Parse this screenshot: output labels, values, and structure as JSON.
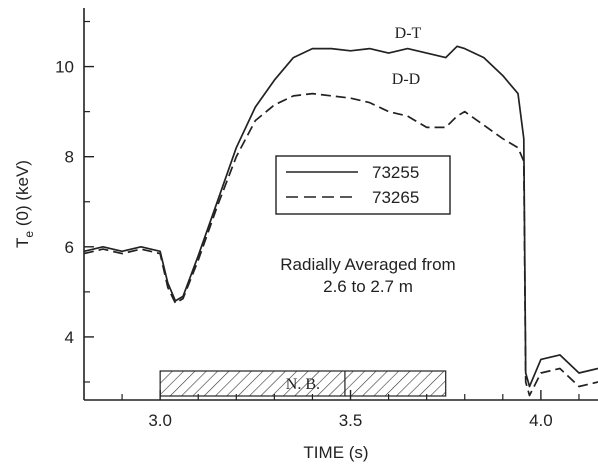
{
  "chart_data": {
    "type": "line",
    "xlabel": "TIME (s)",
    "ylabel_main": "T",
    "ylabel_sub": "e",
    "ylabel_rest": " (0) (keV)",
    "xlim": [
      2.8,
      4.15
    ],
    "ylim": [
      2.6,
      11.3
    ],
    "x_ticks": [
      3.0,
      3.5,
      4.0
    ],
    "x_tick_labels": [
      "3.0",
      "3.5",
      "4.0"
    ],
    "y_ticks": [
      4,
      6,
      8,
      10
    ],
    "y_tick_labels": [
      "4",
      "6",
      "8",
      "10"
    ],
    "grid": false,
    "legend_position": "center",
    "series": [
      {
        "name": "73255",
        "style": "solid",
        "x": [
          2.8,
          2.85,
          2.9,
          2.95,
          3.0,
          3.02,
          3.04,
          3.06,
          3.1,
          3.15,
          3.2,
          3.25,
          3.3,
          3.35,
          3.4,
          3.45,
          3.5,
          3.55,
          3.6,
          3.65,
          3.7,
          3.75,
          3.78,
          3.8,
          3.85,
          3.9,
          3.94,
          3.955,
          3.96,
          3.97,
          4.0,
          4.05,
          4.1,
          4.15
        ],
        "values": [
          5.9,
          6.0,
          5.9,
          6.0,
          5.9,
          5.2,
          4.8,
          4.9,
          5.8,
          7.0,
          8.2,
          9.1,
          9.7,
          10.2,
          10.4,
          10.4,
          10.35,
          10.4,
          10.3,
          10.4,
          10.3,
          10.2,
          10.45,
          10.4,
          10.2,
          9.8,
          9.4,
          8.4,
          3.2,
          2.9,
          3.5,
          3.6,
          3.2,
          3.3
        ]
      },
      {
        "name": "73265",
        "style": "dashed",
        "x": [
          2.8,
          2.85,
          2.9,
          2.95,
          3.0,
          3.02,
          3.04,
          3.06,
          3.1,
          3.15,
          3.2,
          3.25,
          3.3,
          3.35,
          3.4,
          3.45,
          3.5,
          3.55,
          3.6,
          3.65,
          3.7,
          3.75,
          3.78,
          3.8,
          3.85,
          3.9,
          3.94,
          3.955,
          3.96,
          3.97,
          4.0,
          4.05,
          4.1,
          4.15
        ],
        "values": [
          5.85,
          5.95,
          5.85,
          5.95,
          5.85,
          5.1,
          4.75,
          4.85,
          5.7,
          6.9,
          8.0,
          8.8,
          9.15,
          9.35,
          9.4,
          9.35,
          9.3,
          9.2,
          9.0,
          8.9,
          8.65,
          8.65,
          8.9,
          9.0,
          8.7,
          8.4,
          8.2,
          7.9,
          3.0,
          2.7,
          3.2,
          3.3,
          2.9,
          3.0
        ]
      }
    ],
    "annotations": {
      "dt_label": "D-T",
      "dd_label": "D-D",
      "note_line1": "Radially Averaged from",
      "note_line2": "2.6 to 2.7 m",
      "nb_label": "N. B.",
      "nb_start": 3.0,
      "nb_end": 3.75
    }
  }
}
